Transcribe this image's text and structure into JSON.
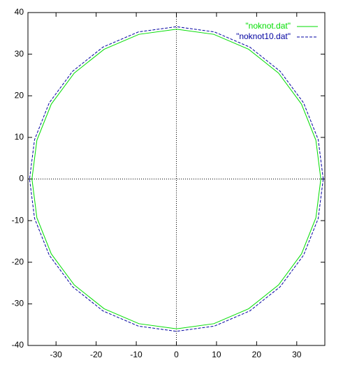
{
  "chart_data": {
    "type": "line",
    "xlim": [
      -37,
      37
    ],
    "ylim": [
      -40,
      40
    ],
    "xticks": [
      -30,
      -20,
      -10,
      0,
      10,
      20,
      30
    ],
    "yticks": [
      -40,
      -30,
      -20,
      -10,
      0,
      10,
      20,
      30,
      40
    ],
    "zero_axes": true,
    "legend": "top-right",
    "series": [
      {
        "name": "\"noknot.dat\"",
        "color": "#00dd00",
        "dash": false,
        "x": [
          36,
          34.77,
          31.18,
          25.46,
          18,
          9.32,
          0,
          -9.32,
          -18,
          -25.46,
          -31.18,
          -34.77,
          -36,
          -34.77,
          -31.18,
          -25.46,
          -18,
          -9.32,
          0,
          9.32,
          18,
          25.46,
          31.18,
          34.77,
          36
        ],
        "values": [
          0,
          9.32,
          18,
          25.46,
          31.18,
          34.77,
          36,
          34.77,
          31.18,
          25.46,
          18,
          9.32,
          0,
          -9.32,
          -18,
          -25.46,
          -31.18,
          -34.77,
          -36,
          -34.77,
          -31.18,
          -25.46,
          -18,
          -9.32,
          0
        ]
      },
      {
        "name": "\"noknot10.dat\"",
        "color": "#0000a0",
        "dash": true,
        "x": [
          36.6,
          35.35,
          31.7,
          25.88,
          18.3,
          9.47,
          0,
          -9.47,
          -18.3,
          -25.88,
          -31.7,
          -35.35,
          -36.6,
          -35.35,
          -31.7,
          -25.88,
          -18.3,
          -9.47,
          0,
          9.47,
          18.3,
          25.88,
          31.7,
          35.35,
          36.6
        ],
        "values": [
          0,
          9.47,
          18.3,
          25.88,
          31.7,
          35.35,
          36.6,
          35.35,
          31.7,
          25.88,
          18.3,
          9.47,
          0,
          -9.47,
          -18.3,
          -25.88,
          -31.7,
          -35.35,
          -36.6,
          -35.35,
          -31.7,
          -25.88,
          -18.3,
          -9.47,
          0
        ]
      }
    ]
  }
}
